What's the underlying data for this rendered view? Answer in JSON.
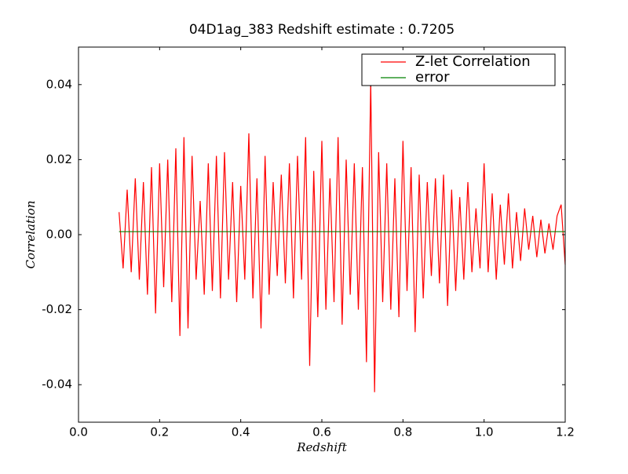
{
  "chart_data": {
    "type": "line",
    "title": "04D1ag_383 Redshift estimate : 0.7205",
    "x_label": "Redshift",
    "y_label": "Correlation",
    "xlim": [
      0,
      1.2
    ],
    "ylim": [
      -0.05,
      0.05
    ],
    "xticks": [
      {
        "value": 0,
        "label": "0.0"
      },
      0.2,
      0.4,
      0.6,
      0.8,
      {
        "value": 1,
        "label": "1.0"
      },
      1.2
    ],
    "yticks": [
      -0.04,
      -0.02,
      {
        "value": 0,
        "label": "0.00"
      },
      0.02,
      0.04
    ],
    "legend": "upper right",
    "marker": {
      "x": 0.7205,
      "y": 0.041
    },
    "series": [
      {
        "name": "Z-let Correlation",
        "color": "#ff0000",
        "x": [
          0.1,
          0.11,
          0.12,
          0.13,
          0.14,
          0.15,
          0.16,
          0.17,
          0.18,
          0.19,
          0.2,
          0.21,
          0.22,
          0.23,
          0.24,
          0.25,
          0.26,
          0.27,
          0.28,
          0.29,
          0.3,
          0.31,
          0.32,
          0.33,
          0.34,
          0.35,
          0.36,
          0.37,
          0.38,
          0.39,
          0.4,
          0.41,
          0.42,
          0.43,
          0.44,
          0.45,
          0.46,
          0.47,
          0.48,
          0.49,
          0.5,
          0.51,
          0.52,
          0.53,
          0.54,
          0.55,
          0.56,
          0.57,
          0.58,
          0.59,
          0.6,
          0.61,
          0.62,
          0.63,
          0.64,
          0.65,
          0.66,
          0.67,
          0.68,
          0.69,
          0.7,
          0.71,
          0.7205,
          0.73,
          0.74,
          0.75,
          0.76,
          0.77,
          0.78,
          0.79,
          0.8,
          0.81,
          0.82,
          0.83,
          0.84,
          0.85,
          0.86,
          0.87,
          0.88,
          0.89,
          0.9,
          0.91,
          0.92,
          0.93,
          0.94,
          0.95,
          0.96,
          0.97,
          0.98,
          0.99,
          1.0,
          1.01,
          1.02,
          1.03,
          1.04,
          1.05,
          1.06,
          1.07,
          1.08,
          1.09,
          1.1,
          1.11,
          1.12,
          1.13,
          1.14,
          1.15,
          1.16,
          1.17,
          1.18,
          1.19,
          1.2
        ],
        "values": [
          0.006,
          -0.009,
          0.012,
          -0.01,
          0.015,
          -0.012,
          0.014,
          -0.016,
          0.018,
          -0.021,
          0.019,
          -0.014,
          0.02,
          -0.018,
          0.023,
          -0.027,
          0.026,
          -0.025,
          0.021,
          -0.012,
          0.009,
          -0.016,
          0.019,
          -0.015,
          0.021,
          -0.017,
          0.022,
          -0.012,
          0.014,
          -0.018,
          0.013,
          -0.012,
          0.027,
          -0.017,
          0.015,
          -0.025,
          0.021,
          -0.016,
          0.014,
          -0.011,
          0.016,
          -0.013,
          0.019,
          -0.017,
          0.021,
          -0.012,
          0.026,
          -0.035,
          0.017,
          -0.022,
          0.025,
          -0.02,
          0.015,
          -0.018,
          0.026,
          -0.024,
          0.02,
          -0.016,
          0.019,
          -0.02,
          0.018,
          -0.034,
          0.041,
          -0.042,
          0.022,
          -0.018,
          0.019,
          -0.02,
          0.015,
          -0.022,
          0.025,
          -0.015,
          0.018,
          -0.026,
          0.016,
          -0.017,
          0.014,
          -0.011,
          0.015,
          -0.013,
          0.016,
          -0.019,
          0.012,
          -0.015,
          0.01,
          -0.012,
          0.014,
          -0.01,
          0.007,
          -0.009,
          0.019,
          -0.01,
          0.011,
          -0.012,
          0.008,
          -0.008,
          0.011,
          -0.009,
          0.006,
          -0.007,
          0.007,
          -0.004,
          0.005,
          -0.006,
          0.004,
          -0.005,
          0.003,
          -0.004,
          0.005,
          0.008,
          -0.008
        ]
      },
      {
        "name": "error",
        "color": "#008000",
        "x": [
          0.1,
          1.2
        ],
        "values": [
          0.0008,
          0.0008
        ]
      }
    ]
  }
}
